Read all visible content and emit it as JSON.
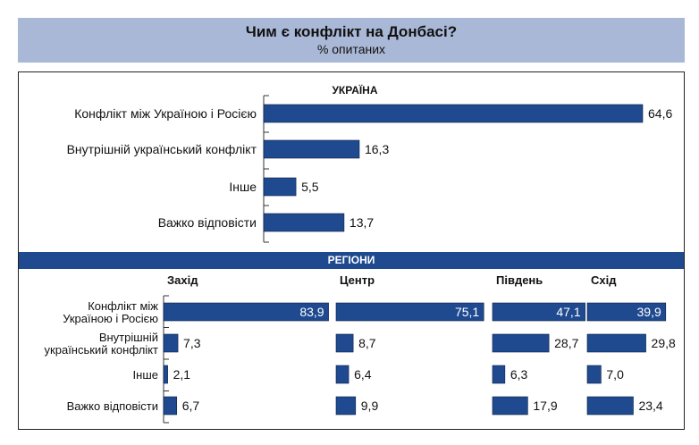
{
  "header": {
    "title": "Чим є конфлікт на Донбасі?",
    "subtitle": "% опитаних"
  },
  "colors": {
    "bar": "#1f4a8f",
    "header_bg": "#a9b8d6",
    "band_bg": "#1f4a8f"
  },
  "chart_data": [
    {
      "type": "bar",
      "orientation": "horizontal",
      "title": "УКРАЇНА",
      "categories": [
        "Конфлікт між Україною і Росією",
        "Внутрішній український конфлікт",
        "Інше",
        "Важко відповісти"
      ],
      "values": [
        64.6,
        16.3,
        5.5,
        13.7
      ],
      "labels": [
        "64,6",
        "16,3",
        "5,5",
        "13,7"
      ],
      "xlim": [
        0,
        66
      ]
    },
    {
      "type": "bar",
      "orientation": "horizontal",
      "title": "РЕГІОНИ",
      "categories": [
        "Конфлікт між Україною і Росією",
        "Внутрішній український конфлікт",
        "Інше",
        "Важко відповісти"
      ],
      "category_lines": [
        [
          "Конфлікт між",
          "Україною і Росією"
        ],
        [
          "Внутрішній",
          "український конфлікт"
        ],
        [
          "Інше"
        ],
        [
          "Важко відповісти"
        ]
      ],
      "series": [
        {
          "name": "Захід",
          "values": [
            83.9,
            7.3,
            2.1,
            6.7
          ],
          "labels": [
            "83,9",
            "7,3",
            "2,1",
            "6,7"
          ]
        },
        {
          "name": "Центр",
          "values": [
            75.1,
            8.7,
            6.4,
            9.9
          ],
          "labels": [
            "75,1",
            "8,7",
            "6,4",
            "9,9"
          ]
        },
        {
          "name": "Південь",
          "values": [
            47.1,
            28.7,
            6.3,
            17.9
          ],
          "labels": [
            "47,1",
            "28,7",
            "6,3",
            "17,9"
          ]
        },
        {
          "name": "Схід",
          "values": [
            39.9,
            29.8,
            7.0,
            23.4
          ],
          "labels": [
            "39,9",
            "29,8",
            "7,0",
            "23,4"
          ]
        }
      ]
    }
  ]
}
